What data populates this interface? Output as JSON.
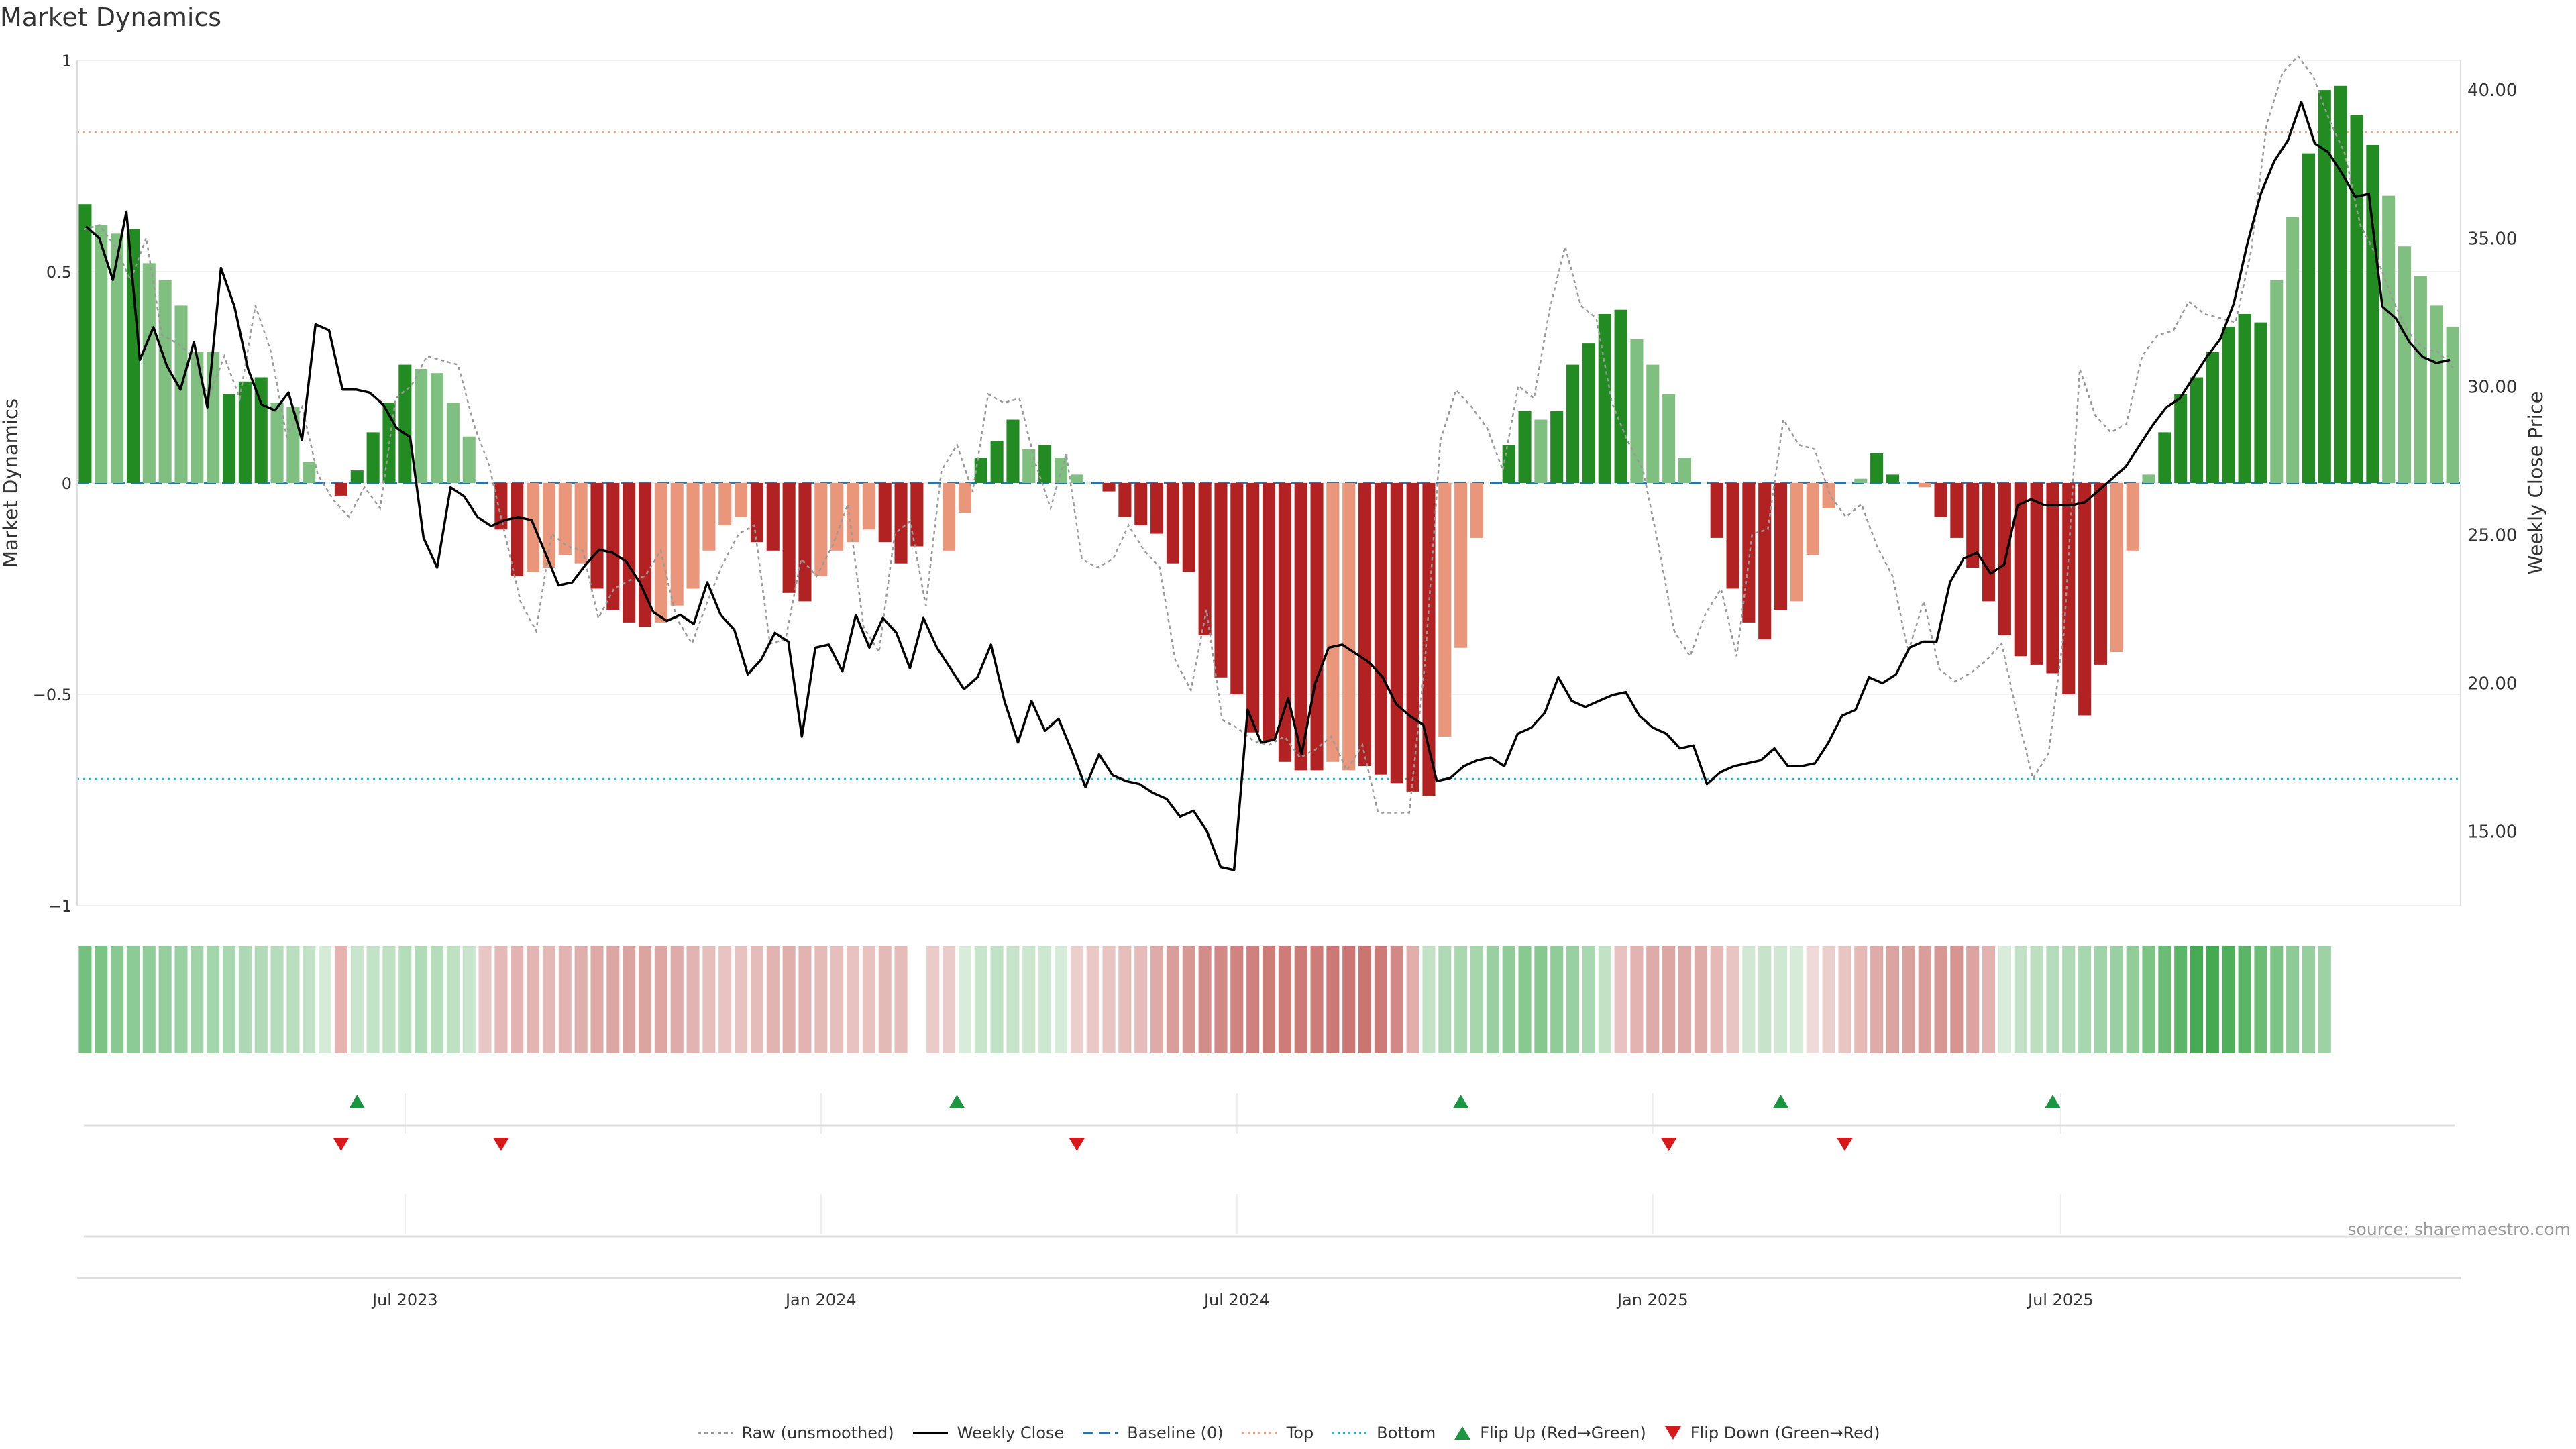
{
  "chart_data": {
    "type": "bar",
    "title": "Market Dynamics",
    "source": "source: sharemaestro.com",
    "y_left": {
      "label": "Market Dynamics",
      "ylim": [
        -1,
        1
      ],
      "ticks": [
        "1",
        "0.5",
        "0",
        "−0.5",
        "−1"
      ],
      "tick_values": [
        1,
        0.5,
        0,
        -0.5,
        -1
      ]
    },
    "y_right": {
      "label": "Weekly Close Price",
      "ylim": [
        12.5,
        41.0
      ],
      "ticks": [
        "40.00",
        "35.00",
        "30.00",
        "25.00",
        "20.00",
        "15.00"
      ],
      "tick_values": [
        40,
        35,
        30,
        25,
        20,
        15
      ]
    },
    "x_ticks": [
      {
        "label": "Jul 2023",
        "index": 20
      },
      {
        "label": "Jan 2024",
        "index": 46
      },
      {
        "label": "Jul 2024",
        "index": 72
      },
      {
        "label": "Jan 2025",
        "index": 98
      },
      {
        "label": "Jul 2025",
        "index": 123.5
      }
    ],
    "reference_lines": {
      "baseline": 0,
      "top": 0.83,
      "bottom": -0.7
    },
    "bar_values": [
      0.66,
      0.61,
      0.59,
      0.6,
      0.52,
      0.48,
      0.42,
      0.31,
      0.31,
      0.21,
      0.24,
      0.25,
      0.19,
      0.18,
      0.05,
      0.0,
      -0.03,
      0.03,
      0.12,
      0.19,
      0.28,
      0.27,
      0.26,
      0.19,
      0.11,
      0.0,
      -0.11,
      -0.22,
      -0.21,
      -0.2,
      -0.17,
      -0.19,
      -0.25,
      -0.3,
      -0.33,
      -0.34,
      -0.33,
      -0.29,
      -0.25,
      -0.16,
      -0.1,
      -0.08,
      -0.14,
      -0.16,
      -0.26,
      -0.28,
      -0.22,
      -0.16,
      -0.14,
      -0.11,
      -0.14,
      -0.19,
      -0.15,
      0.0,
      -0.16,
      -0.07,
      0.06,
      0.1,
      0.15,
      0.08,
      0.09,
      0.06,
      0.02,
      0.0,
      -0.02,
      -0.08,
      -0.1,
      -0.12,
      -0.19,
      -0.21,
      -0.36,
      -0.46,
      -0.5,
      -0.59,
      -0.61,
      -0.66,
      -0.68,
      -0.68,
      -0.66,
      -0.68,
      -0.67,
      -0.69,
      -0.71,
      -0.73,
      -0.74,
      -0.6,
      -0.39,
      -0.13,
      0.0,
      0.09,
      0.17,
      0.15,
      0.17,
      0.28,
      0.33,
      0.4,
      0.41,
      0.34,
      0.28,
      0.21,
      0.06,
      0.0,
      -0.13,
      -0.25,
      -0.33,
      -0.37,
      -0.3,
      -0.28,
      -0.17,
      -0.06,
      0.0,
      0.01,
      0.07,
      0.02,
      0.0,
      -0.01,
      -0.08,
      -0.13,
      -0.2,
      -0.28,
      -0.36,
      -0.41,
      -0.43,
      -0.45,
      -0.5,
      -0.55,
      -0.43,
      -0.4,
      -0.16,
      0.02,
      0.12,
      0.21,
      0.25,
      0.31,
      0.37,
      0.4,
      0.38,
      0.48,
      0.63,
      0.78,
      0.93,
      0.94,
      0.87,
      0.8,
      0.68,
      0.56,
      0.49,
      0.42,
      0.37
    ],
    "bar_tone": [
      "dark",
      "light",
      "light",
      "dark",
      "light",
      "light",
      "light",
      "light",
      "light",
      "dark",
      "dark",
      "dark",
      "light",
      "light",
      "light",
      "light",
      "dark",
      "dark",
      "dark",
      "dark",
      "dark",
      "light",
      "light",
      "light",
      "light",
      "light",
      "dark",
      "dark",
      "light",
      "light",
      "light",
      "light",
      "dark",
      "dark",
      "dark",
      "dark",
      "light",
      "light",
      "light",
      "light",
      "light",
      "light",
      "dark",
      "dark",
      "dark",
      "dark",
      "light",
      "light",
      "light",
      "light",
      "dark",
      "dark",
      "dark",
      "light",
      "light",
      "light",
      "dark",
      "dark",
      "dark",
      "light",
      "dark",
      "light",
      "light",
      "light",
      "dark",
      "dark",
      "dark",
      "dark",
      "dark",
      "dark",
      "dark",
      "dark",
      "dark",
      "dark",
      "dark",
      "dark",
      "dark",
      "dark",
      "light",
      "light",
      "dark",
      "dark",
      "dark",
      "dark",
      "dark",
      "light",
      "light",
      "light",
      "light",
      "dark",
      "dark",
      "light",
      "dark",
      "dark",
      "dark",
      "dark",
      "dark",
      "light",
      "light",
      "light",
      "light",
      "light",
      "dark",
      "dark",
      "dark",
      "dark",
      "dark",
      "light",
      "light",
      "light",
      "light",
      "light",
      "dark",
      "dark",
      "light",
      "light",
      "dark",
      "dark",
      "dark",
      "dark",
      "dark",
      "dark",
      "dark",
      "dark",
      "dark",
      "dark",
      "dark",
      "light",
      "light",
      "light",
      "dark",
      "dark",
      "dark",
      "dark",
      "dark",
      "dark",
      "dark",
      "light",
      "light",
      "dark",
      "dark",
      "dark",
      "dark",
      "dark",
      "light",
      "light",
      "light",
      "light",
      "light",
      "light",
      "light",
      "light"
    ],
    "strip_colors": [
      "#74c17f",
      "#7bc485",
      "#87c990",
      "#8ccb95",
      "#90cd99",
      "#96cf9e",
      "#9ad1a2",
      "#a0d4a8",
      "#a4d6ab",
      "#a8d8af",
      "#acd9b3",
      "#b1dbb7",
      "#b5ddbb",
      "#b9dfbf",
      "#c0e2c5",
      "#d4ebd7",
      "#e6b3b0",
      "#c8e6cb",
      "#c2e3c6",
      "#bde1c1",
      "#b4ddba",
      "#b1dbb7",
      "#b6ddbb",
      "#bee1c2",
      "#c7e5ca",
      "#e8c6c4",
      "#e4b9b6",
      "#e2b3b0",
      "#e3b5b2",
      "#e4b8b5",
      "#e2b3b0",
      "#e0aeab",
      "#dea9a6",
      "#dda6a3",
      "#dca4a1",
      "#dca49f",
      "#dda6a3",
      "#dfaba8",
      "#e2b3b0",
      "#e6bebb",
      "#e8c3c1",
      "#e7c2bf",
      "#e5bcb9",
      "#e2b3b0",
      "#e0aeab",
      "#e2b3b0",
      "#e5bab7",
      "#e6bebb",
      "#e8c2c0",
      "#e7c2bf",
      "#e4b9b6",
      "#e6bcb9",
      "#ffffff",
      "#ebcbc9",
      "#ebcbc9",
      "#d8ecdb",
      "#c7e5ca",
      "#c0e2c5",
      "#c8e5cb",
      "#cbe7ce",
      "#cde8d0",
      "#d5ecd8",
      "#ebcfcd",
      "#e9c8c6",
      "#e8c5c3",
      "#e6bfbc",
      "#e5bcb9",
      "#dfaba8",
      "#d99e9a",
      "#d79893",
      "#d38d88",
      "#d28985",
      "#d0837f",
      "#cf817d",
      "#cd7c78",
      "#cd7c78",
      "#cd7b77",
      "#cd7c78",
      "#cc7874",
      "#cb7672",
      "#cb7571",
      "#cd7b77",
      "#d28985",
      "#e0aeab",
      "#c3e3c7",
      "#afdab5",
      "#a9d8af",
      "#a5d6ac",
      "#99d0a1",
      "#8fcc97",
      "#88c990",
      "#86c98e",
      "#8fcc97",
      "#99d0a1",
      "#a8d8af",
      "#c1e2c5",
      "#e7c2bf",
      "#e2b3b0",
      "#dfaba8",
      "#dda6a3",
      "#dea9a6",
      "#dfaba8",
      "#e4b9b6",
      "#e8c5c3",
      "#d1e9d4",
      "#c6e4c9",
      "#cfe8d2",
      "#d6ecd9",
      "#f0d9d8",
      "#ebcfcd",
      "#e8c5c3",
      "#e4b9b6",
      "#dfaba8",
      "#dca4a1",
      "#daa09c",
      "#d99e9a",
      "#d79893",
      "#d6958f",
      "#dca4a1",
      "#e2b3b0",
      "#d8ecdb",
      "#c1e2c5",
      "#bbdfbf",
      "#b6ddbb",
      "#afdab5",
      "#a7d7ae",
      "#a0d4a8",
      "#99d0a1",
      "#90cd99",
      "#7ac484",
      "#6bbd76",
      "#5cb668",
      "#46ab53",
      "#43aa50",
      "#4eb05b",
      "#5ab567",
      "#6bbd76",
      "#7cc486",
      "#8ccb95",
      "#96cf9e",
      "#9dd2a4"
    ],
    "flip_up_indices": [
      17,
      54.5,
      86,
      106,
      123
    ],
    "flip_down_indices": [
      16,
      26,
      62,
      99,
      110
    ],
    "series": [
      {
        "name": "Raw (unsmoothed)",
        "values": [
          0.6,
          0.61,
          0.56,
          0.48,
          0.58,
          0.35,
          0.33,
          0.3,
          0.2,
          0.3,
          0.2,
          0.42,
          0.31,
          0.11,
          0.18,
          0.02,
          -0.04,
          -0.08,
          -0.01,
          -0.06,
          0.2,
          0.23,
          0.3,
          0.29,
          0.28,
          0.14,
          0.04,
          -0.12,
          -0.28,
          -0.35,
          -0.12,
          -0.15,
          -0.16,
          -0.32,
          -0.25,
          -0.23,
          -0.22,
          -0.16,
          -0.32,
          -0.38,
          -0.28,
          -0.19,
          -0.12,
          -0.1,
          -0.38,
          -0.37,
          -0.18,
          -0.22,
          -0.15,
          -0.05,
          -0.34,
          -0.4,
          -0.12,
          -0.09,
          -0.29,
          0.03,
          0.09,
          -0.02,
          0.21,
          0.19,
          0.2,
          0.05,
          -0.06,
          0.07,
          -0.18,
          -0.2,
          -0.18,
          -0.1,
          -0.16,
          -0.2,
          -0.42,
          -0.49,
          -0.3,
          -0.56,
          -0.58,
          -0.61,
          -0.62,
          -0.6,
          -0.65,
          -0.63,
          -0.6,
          -0.68,
          -0.62,
          -0.78,
          -0.78,
          -0.78,
          -0.43,
          0.1,
          0.22,
          0.18,
          0.13,
          0.03,
          0.23,
          0.2,
          0.41,
          0.56,
          0.42,
          0.39,
          0.19,
          0.1,
          0.03,
          -0.15,
          -0.35,
          -0.41,
          -0.31,
          -0.25,
          -0.41,
          -0.12,
          -0.11,
          0.15,
          0.09,
          0.08,
          -0.03,
          -0.08,
          -0.05,
          -0.15,
          -0.22,
          -0.4,
          -0.28,
          -0.44,
          -0.47,
          -0.45,
          -0.42,
          -0.38,
          -0.55,
          -0.7,
          -0.64,
          -0.35,
          0.27,
          0.16,
          0.12,
          0.14,
          0.3,
          0.35,
          0.36,
          0.43,
          0.4,
          0.39,
          0.38,
          0.55,
          0.85,
          0.97,
          1.01,
          0.96,
          0.86,
          0.78,
          0.61,
          0.54,
          0.44,
          0.36,
          0.32,
          0.31,
          0.27
        ]
      },
      {
        "name": "Weekly Close",
        "values": [
          35.4,
          35.0,
          33.6,
          35.9,
          30.9,
          32.0,
          30.7,
          29.9,
          31.5,
          29.3,
          34.0,
          32.7,
          30.6,
          29.4,
          29.2,
          29.8,
          28.2,
          32.1,
          31.9,
          29.9,
          29.9,
          29.8,
          29.4,
          28.6,
          28.3,
          24.9,
          23.9,
          26.6,
          26.3,
          25.6,
          25.3,
          25.5,
          25.6,
          25.5,
          24.4,
          23.3,
          23.4,
          24.0,
          24.5,
          24.4,
          24.1,
          23.4,
          22.4,
          22.1,
          22.3,
          22.0,
          23.4,
          22.3,
          21.8,
          20.3,
          20.8,
          21.7,
          21.4,
          18.2,
          21.2,
          21.3,
          20.4,
          22.3,
          21.2,
          22.2,
          21.7,
          20.5,
          22.2,
          21.2,
          20.5,
          19.8,
          20.2,
          21.3,
          19.4,
          18.0,
          19.4,
          18.4,
          18.8,
          17.7,
          16.5,
          17.6,
          16.9,
          16.7,
          16.6,
          16.3,
          16.1,
          15.5,
          15.7,
          15.0,
          13.8,
          13.7,
          19.1,
          18.0,
          18.1,
          19.5,
          17.6,
          20.0,
          21.2,
          21.3,
          21.0,
          20.7,
          20.2,
          19.3,
          18.9,
          18.6,
          16.7,
          16.8,
          17.2,
          17.4,
          17.5,
          17.2,
          18.3,
          18.5,
          19.0,
          20.2,
          19.4,
          19.2,
          19.4,
          19.6,
          19.7,
          18.9,
          18.5,
          18.3,
          17.8,
          17.9,
          16.6,
          17.0,
          17.2,
          17.3,
          17.4,
          17.8,
          17.2,
          17.2,
          17.3,
          18.0,
          18.9,
          19.1,
          20.2,
          20.0,
          20.3,
          21.2,
          21.4,
          21.4,
          23.4,
          24.2,
          24.4,
          23.7,
          24.0,
          26.0,
          26.2,
          26.0,
          26.0,
          26.0,
          26.1,
          26.5,
          26.9,
          27.3,
          28.0,
          28.7,
          29.3,
          29.6,
          30.3,
          31.0,
          31.6,
          32.8,
          34.8,
          36.5,
          37.6,
          38.3,
          39.6,
          38.2,
          37.9,
          37.2,
          36.4,
          36.5,
          32.7,
          32.3,
          31.5,
          31.0,
          30.8,
          30.9
        ]
      }
    ],
    "legend": [
      "Raw (unsmoothed)",
      "Weekly Close",
      "Baseline (0)",
      "Top",
      "Bottom",
      "Flip Up (Red→Green)",
      "Flip Down (Green→Red)"
    ],
    "colors": {
      "bar_pos_dark": "#228b22",
      "bar_pos_light": "#7fbf7f",
      "bar_neg_dark": "#b22222",
      "bar_neg_light": "#e9967a",
      "raw_line": "#999999",
      "close_line": "#000000",
      "baseline": "#1f77b4",
      "top": "#f4a582",
      "bottom": "#17becf",
      "flip_up": "#1a9641",
      "flip_down": "#d7191c",
      "grid": "#eeeeee"
    }
  }
}
